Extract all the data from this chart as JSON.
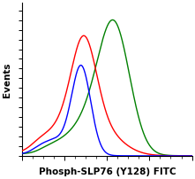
{
  "xlabel": "Phosph-SLP76 (Y128) FITC",
  "ylabel": "Events",
  "xlabel_fontsize": 7.5,
  "ylabel_fontsize": 7.5,
  "xlabel_fontweight": "bold",
  "ylabel_fontweight": "bold",
  "background_color": "#ffffff",
  "plot_bg_color": "#ffffff",
  "line_colors": [
    "red",
    "blue",
    "green"
  ],
  "xlim": [
    0,
    1024
  ],
  "ylim": [
    0,
    1.05
  ],
  "figsize": [
    2.21,
    2.02
  ],
  "dpi": 100
}
